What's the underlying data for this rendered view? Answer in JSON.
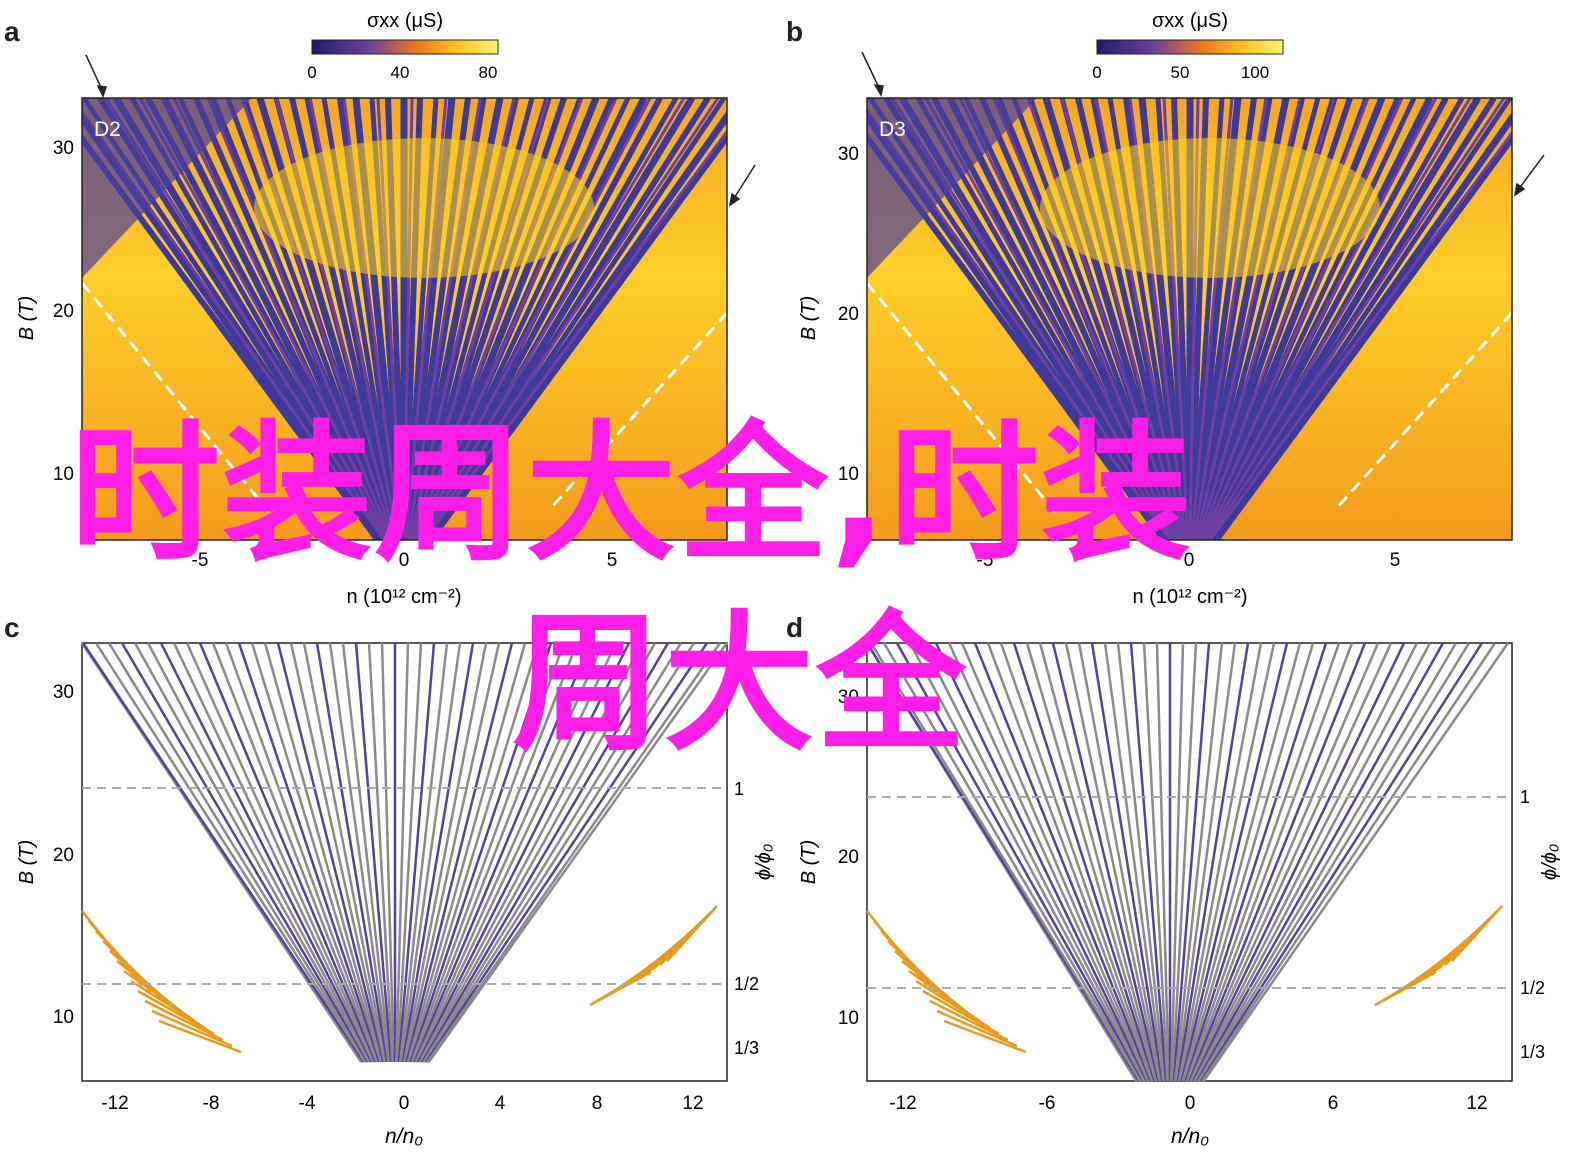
{
  "panels": {
    "a": {
      "letter": "a",
      "tag": "D2",
      "colorbar_label": "σxx (μS)",
      "colorbar_ticks": [
        "0",
        "40",
        "80"
      ],
      "xlabel": "n (10¹² cm⁻²)",
      "ylabel": "B (T)",
      "yticks": [
        "10",
        "20",
        "30"
      ],
      "xticks": [
        "-5",
        "0",
        "5"
      ]
    },
    "b": {
      "letter": "b",
      "tag": "D3",
      "colorbar_label": "σxx (μS)",
      "colorbar_ticks": [
        "0",
        "50",
        "100"
      ],
      "xlabel": "n (10¹² cm⁻²)",
      "ylabel": "B (T)",
      "yticks": [
        "10",
        "20",
        "30"
      ],
      "xticks": [
        "-5",
        "0",
        "5"
      ]
    },
    "c": {
      "letter": "c",
      "xlabel": "n/n₀",
      "ylabel": "B (T)",
      "right_label": "ϕ/ϕ₀",
      "yticks": [
        "10",
        "20",
        "30"
      ],
      "xticks": [
        "-12",
        "-8",
        "-4",
        "0",
        "4",
        "8",
        "12"
      ],
      "right_ticks": [
        "1",
        "1/2",
        "1/3"
      ]
    },
    "d": {
      "letter": "d",
      "xlabel": "n/n₀",
      "ylabel": "B (T)",
      "right_label": "ϕ/ϕ₀",
      "yticks": [
        "10",
        "20",
        "30"
      ],
      "xticks": [
        "-12",
        "-6",
        "0",
        "6",
        "12"
      ],
      "right_ticks": [
        "1",
        "1/2",
        "1/3"
      ]
    }
  },
  "overlay": {
    "line1": "时装周大全,时装",
    "line2": "周大全"
  },
  "colors": {
    "overlay": "#ff1ee8",
    "fan_purple": "#5a3fa0",
    "fan_gray": "#8a8a8a",
    "fan_orange": "#e89a1e",
    "heat_yellow": "#ffd21e",
    "heat_orange": "#f5a623",
    "heat_purple": "#3e3a9a"
  }
}
